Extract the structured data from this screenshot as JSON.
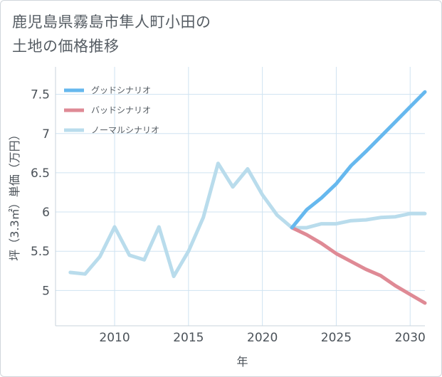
{
  "title_line1": "鹿児島県霧島市隼人町小田の",
  "title_line2": "土地の価格推移",
  "chart_data": {
    "type": "line",
    "xlabel": "年",
    "ylabel": "坪（3.3㎡）単価（万円）",
    "xlim": [
      2006,
      2031
    ],
    "ylim": [
      4.55,
      7.85
    ],
    "x_ticks": [
      2010,
      2015,
      2020,
      2025,
      2030
    ],
    "y_ticks": [
      5,
      5.5,
      6,
      6.5,
      7,
      7.5
    ],
    "y_tick_labels": [
      "5",
      "5.5",
      "6",
      "6.5",
      "7",
      "7.5"
    ],
    "grid": true,
    "legend_position": "top-left",
    "series": [
      {
        "name": "グッドシナリオ",
        "color": "#66b8ee",
        "x": [
          2022,
          2023,
          2024,
          2025,
          2026,
          2027,
          2028,
          2029,
          2030,
          2031
        ],
        "y": [
          5.8,
          6.03,
          6.18,
          6.36,
          6.59,
          6.77,
          6.96,
          7.15,
          7.34,
          7.53
        ]
      },
      {
        "name": "バッドシナリオ",
        "color": "#df8a95",
        "x": [
          2022,
          2023,
          2024,
          2025,
          2026,
          2027,
          2028,
          2029,
          2030,
          2031
        ],
        "y": [
          5.8,
          5.71,
          5.6,
          5.47,
          5.37,
          5.27,
          5.19,
          5.06,
          4.95,
          4.84
        ]
      },
      {
        "name": "ノーマルシナリオ",
        "color": "#b9dcec",
        "x": [
          2007,
          2008,
          2009,
          2010,
          2011,
          2012,
          2013,
          2014,
          2015,
          2016,
          2017,
          2018,
          2019,
          2020,
          2021,
          2022,
          2023,
          2024,
          2025,
          2026,
          2027,
          2028,
          2029,
          2030,
          2031
        ],
        "y": [
          5.23,
          5.21,
          5.43,
          5.81,
          5.45,
          5.39,
          5.81,
          5.18,
          5.5,
          5.93,
          6.62,
          6.32,
          6.55,
          6.22,
          5.96,
          5.8,
          5.8,
          5.85,
          5.85,
          5.89,
          5.9,
          5.93,
          5.94,
          5.98,
          5.98
        ]
      }
    ]
  }
}
